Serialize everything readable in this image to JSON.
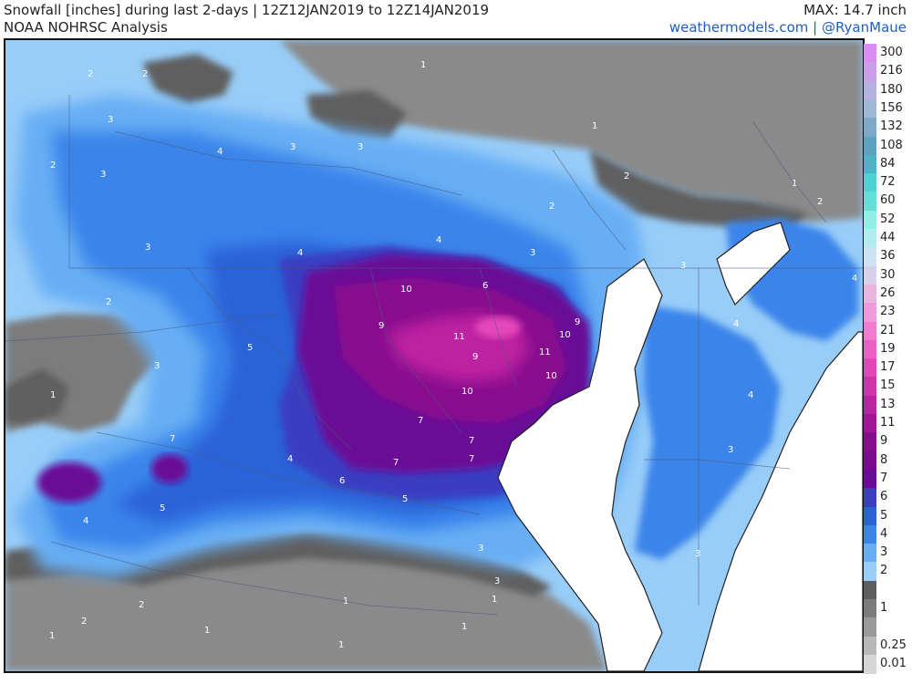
{
  "header": {
    "title": "Snowfall [inches] during last 2-days | 12Z12JAN2019 to 12Z14JAN2019",
    "subtitle": "NOAA NOHRSC Analysis",
    "max_label": "MAX: 14.7 inch",
    "credit": "weathermodels.com | @RyanMaue"
  },
  "legend": {
    "items": [
      {
        "value": "300",
        "color": "#d98cf2"
      },
      {
        "value": "216",
        "color": "#c9a0e8"
      },
      {
        "value": "180",
        "color": "#b3b2e0"
      },
      {
        "value": "156",
        "color": "#9fb8d8"
      },
      {
        "value": "132",
        "color": "#7fa9c9"
      },
      {
        "value": "108",
        "color": "#5fa2c0"
      },
      {
        "value": "84",
        "color": "#4fb3c8"
      },
      {
        "value": "72",
        "color": "#4fd2d2"
      },
      {
        "value": "60",
        "color": "#62e0d8"
      },
      {
        "value": "52",
        "color": "#8ef0e6"
      },
      {
        "value": "44",
        "color": "#b2ecf0"
      },
      {
        "value": "36",
        "color": "#cfe4f2"
      },
      {
        "value": "30",
        "color": "#d6d0ea"
      },
      {
        "value": "26",
        "color": "#e7b5e0"
      },
      {
        "value": "23",
        "color": "#ee9ad8"
      },
      {
        "value": "21",
        "color": "#f07bcf"
      },
      {
        "value": "19",
        "color": "#ee5fc4"
      },
      {
        "value": "17",
        "color": "#e446b8"
      },
      {
        "value": "15",
        "color": "#d232aa"
      },
      {
        "value": "13",
        "color": "#bd23a0"
      },
      {
        "value": "11",
        "color": "#a21596"
      },
      {
        "value": "9",
        "color": "#880d8e"
      },
      {
        "value": "8",
        "color": "#7a0a8f"
      },
      {
        "value": "7",
        "color": "#6a0a96"
      },
      {
        "value": "6",
        "color": "#3a3ec0"
      },
      {
        "value": "5",
        "color": "#2a62d8"
      },
      {
        "value": "4",
        "color": "#3a84ea"
      },
      {
        "value": "3",
        "color": "#68aef4"
      },
      {
        "value": "2",
        "color": "#98cdf8"
      },
      {
        "value": "",
        "color": "#5e5e5e"
      },
      {
        "value": "1",
        "color": "#7c7c7c"
      },
      {
        "value": "",
        "color": "#9a9a9a"
      },
      {
        "value": "0.25",
        "color": "#b8b8b8"
      },
      {
        "value": "0.01",
        "color": "#d6d6d6"
      }
    ]
  },
  "map": {
    "contour_labels": [
      "2",
      "2",
      "1",
      "3",
      "4",
      "3",
      "3",
      "3",
      "1",
      "2",
      "2",
      "2",
      "1",
      "2",
      "3",
      "4",
      "4",
      "3",
      "3",
      "4",
      "2",
      "5",
      "3",
      "10",
      "6",
      "9",
      "11",
      "9",
      "11",
      "10",
      "10",
      "10",
      "9",
      "1",
      "7",
      "7",
      "7",
      "7",
      "7",
      "4",
      "6",
      "5",
      "5",
      "4",
      "4",
      "4",
      "3",
      "3",
      "3",
      "3",
      "1",
      "2",
      "1",
      "1",
      "1",
      "2",
      "1",
      "1"
    ]
  }
}
